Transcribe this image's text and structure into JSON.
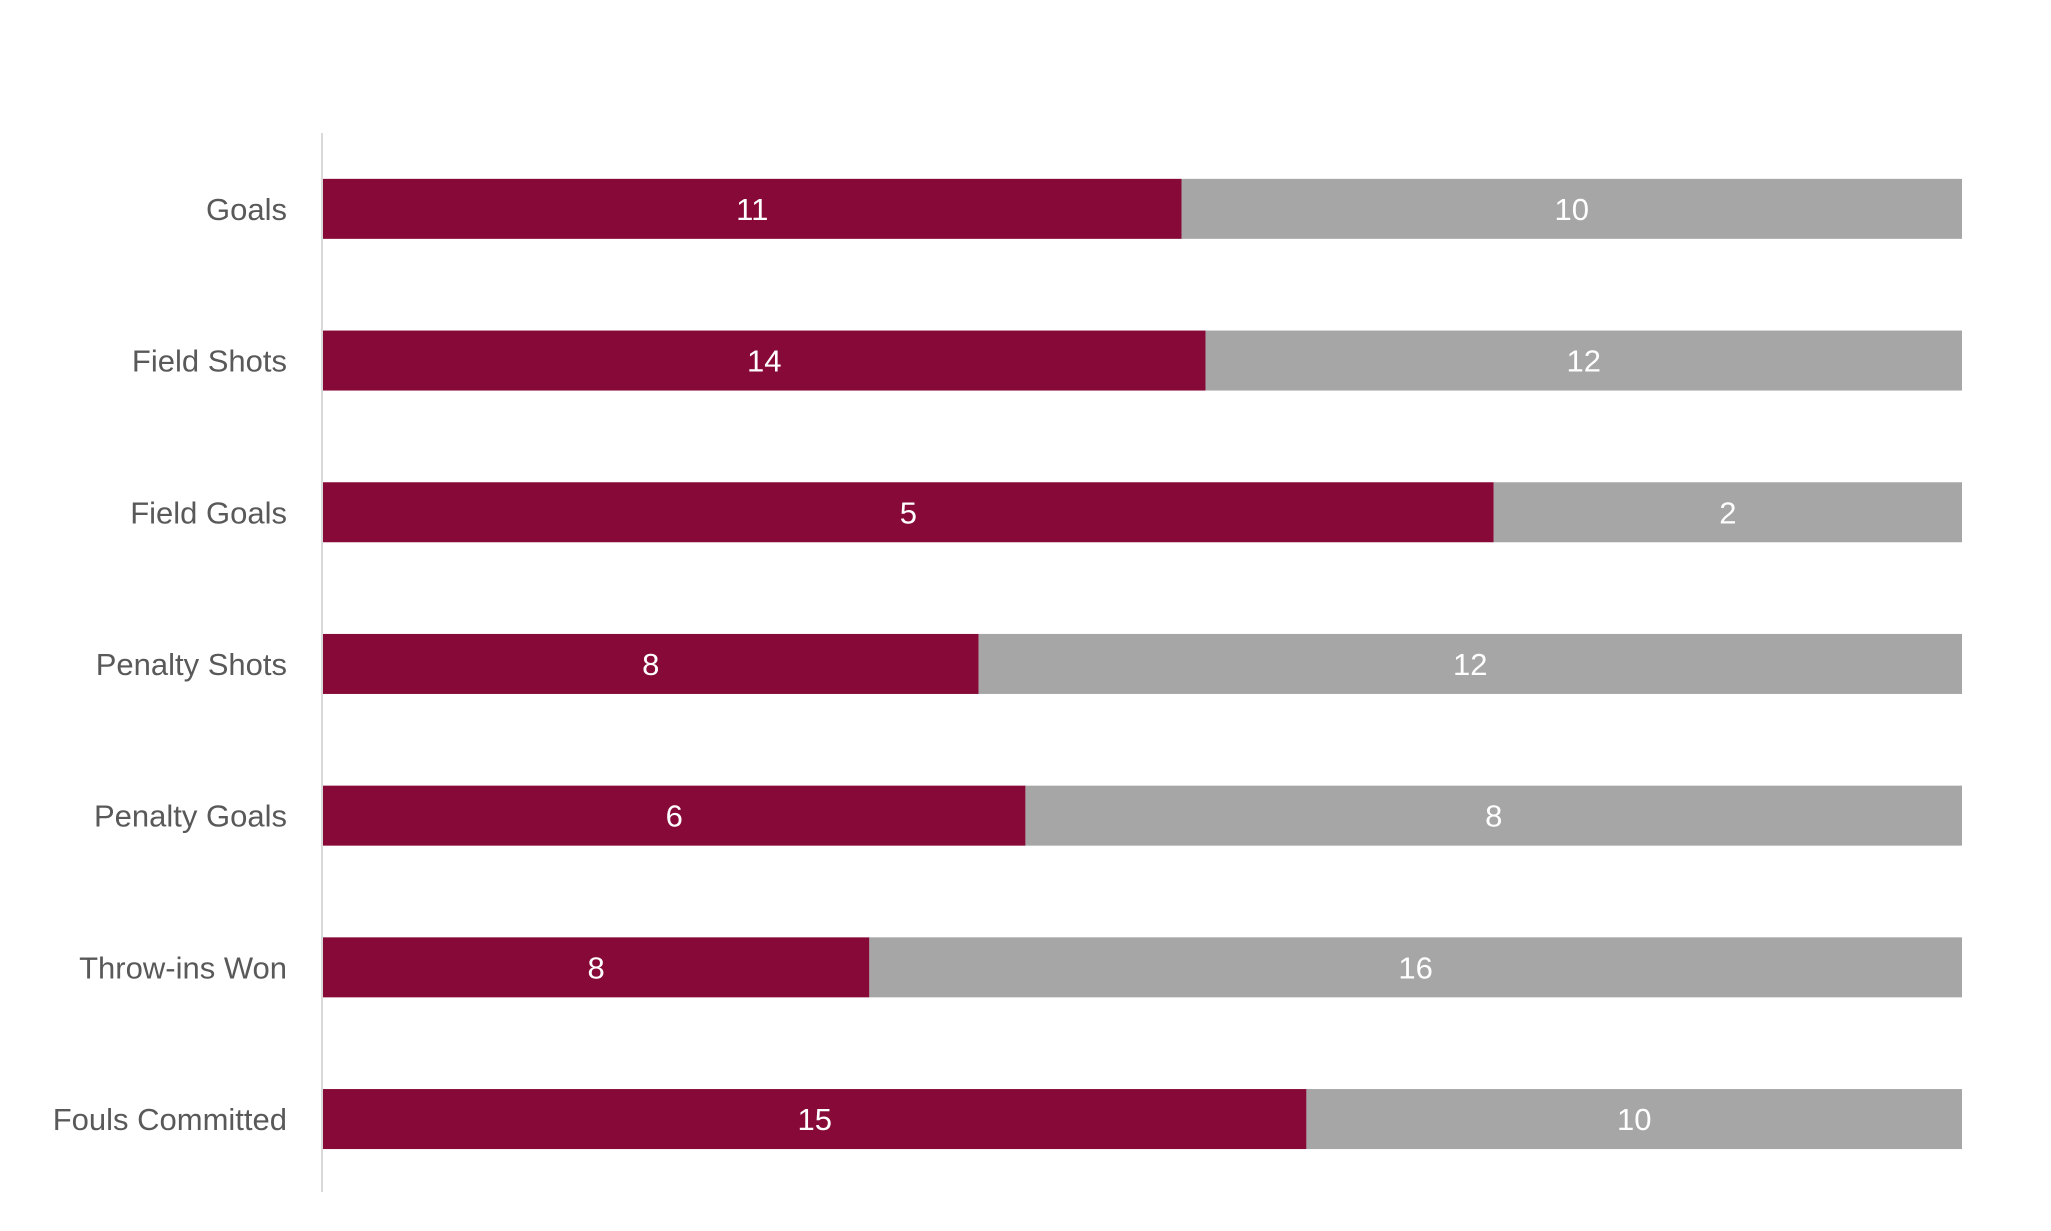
{
  "chart_data": {
    "type": "bar",
    "orientation": "horizontal",
    "stacking": "percent",
    "title": "",
    "xlabel": "",
    "ylabel": "",
    "legend": "none",
    "grid": false,
    "categories": [
      "Goals",
      "Field Shots",
      "Field Goals",
      "Penalty Shots",
      "Penalty Goals",
      "Throw-ins Won",
      "Fouls Committed"
    ],
    "series": [
      {
        "values": [
          11,
          14,
          5,
          8,
          6,
          8,
          15
        ],
        "color": "#870937"
      },
      {
        "values": [
          10,
          12,
          2,
          12,
          8,
          16,
          10
        ],
        "color": "#a6a6a6"
      }
    ]
  }
}
